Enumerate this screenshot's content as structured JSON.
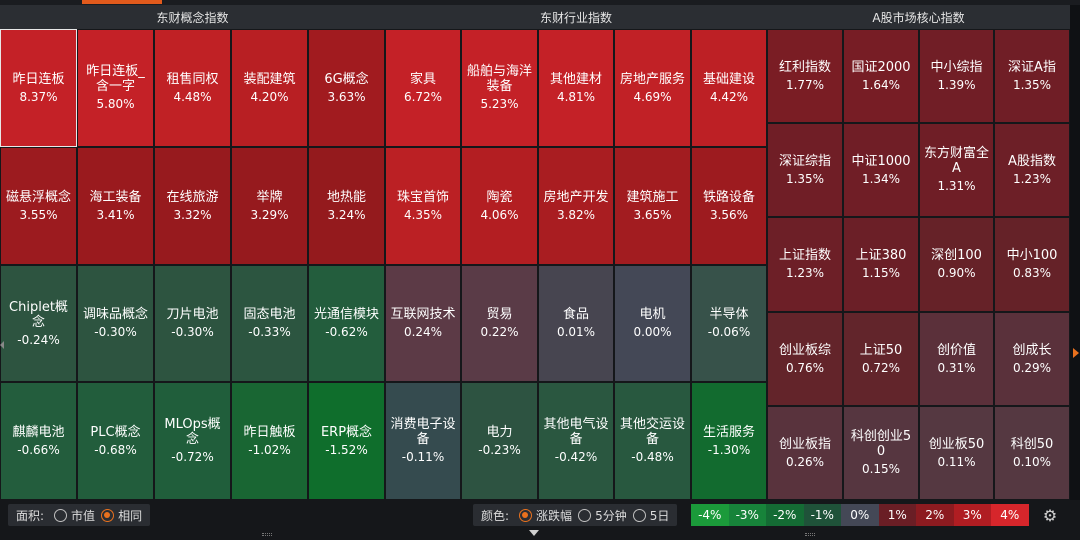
{
  "panels": [
    {
      "title": "东财概念指数",
      "rows": [
        [
          {
            "name": "昨日连板",
            "pct": "8.37%",
            "color": "#c42127",
            "selected": true
          },
          {
            "name": "昨日连板_含一字",
            "pct": "5.80%",
            "color": "#c42127"
          },
          {
            "name": "租售同权",
            "pct": "4.48%",
            "color": "#c02125"
          },
          {
            "name": "装配建筑",
            "pct": "4.20%",
            "color": "#b81f23"
          },
          {
            "name": "6G概念",
            "pct": "3.63%",
            "color": "#a11b1f"
          }
        ],
        [
          {
            "name": "磁悬浮概念",
            "pct": "3.55%",
            "color": "#9c1b1f"
          },
          {
            "name": "海工装备",
            "pct": "3.41%",
            "color": "#9a1a1e"
          },
          {
            "name": "在线旅游",
            "pct": "3.32%",
            "color": "#971a1e"
          },
          {
            "name": "举牌",
            "pct": "3.29%",
            "color": "#961a1e"
          },
          {
            "name": "地热能",
            "pct": "3.24%",
            "color": "#941a1d"
          }
        ],
        [
          {
            "name": "Chiplet概念",
            "pct": "-0.24%",
            "color": "#2d5440"
          },
          {
            "name": "调味品概念",
            "pct": "-0.30%",
            "color": "#2d5440"
          },
          {
            "name": "刀片电池",
            "pct": "-0.30%",
            "color": "#2d5440"
          },
          {
            "name": "固态电池",
            "pct": "-0.33%",
            "color": "#2c5540"
          },
          {
            "name": "光通信模块",
            "pct": "-0.62%",
            "color": "#235d3d"
          }
        ],
        [
          {
            "name": "麒麟电池",
            "pct": "-0.66%",
            "color": "#235d3d"
          },
          {
            "name": "PLC概念",
            "pct": "-0.68%",
            "color": "#225d3c"
          },
          {
            "name": "MLOps概念",
            "pct": "-0.72%",
            "color": "#205e3b"
          },
          {
            "name": "昨日触板",
            "pct": "-1.02%",
            "color": "#196633"
          },
          {
            "name": "ERP概念",
            "pct": "-1.52%",
            "color": "#0f6e2c"
          }
        ]
      ]
    },
    {
      "title": "东财行业指数",
      "rows": [
        [
          {
            "name": "家具",
            "pct": "6.72%",
            "color": "#c42127"
          },
          {
            "name": "船舶与海洋装备",
            "pct": "5.23%",
            "color": "#c42127"
          },
          {
            "name": "其他建材",
            "pct": "4.81%",
            "color": "#c42127"
          },
          {
            "name": "房地产服务",
            "pct": "4.69%",
            "color": "#c12126"
          },
          {
            "name": "基础建设",
            "pct": "4.42%",
            "color": "#bd2025"
          }
        ],
        [
          {
            "name": "珠宝首饰",
            "pct": "4.35%",
            "color": "#bb2024"
          },
          {
            "name": "陶瓷",
            "pct": "4.06%",
            "color": "#b31e22"
          },
          {
            "name": "房地产开发",
            "pct": "3.82%",
            "color": "#a91d21"
          },
          {
            "name": "建筑施工",
            "pct": "3.65%",
            "color": "#a21c20"
          },
          {
            "name": "铁路设备",
            "pct": "3.56%",
            "color": "#9d1b1f"
          }
        ],
        [
          {
            "name": "互联网技术",
            "pct": "0.24%",
            "color": "#5c3a46"
          },
          {
            "name": "贸易",
            "pct": "0.22%",
            "color": "#5a3b47"
          },
          {
            "name": "食品",
            "pct": "0.01%",
            "color": "#474550"
          },
          {
            "name": "电机",
            "pct": "0.00%",
            "color": "#444856"
          },
          {
            "name": "半导体",
            "pct": "-0.06%",
            "color": "#37524a"
          }
        ],
        [
          {
            "name": "消费电子设备",
            "pct": "-0.11%",
            "color": "#354b4f"
          },
          {
            "name": "电力",
            "pct": "-0.23%",
            "color": "#2d5341"
          },
          {
            "name": "其他电气设备",
            "pct": "-0.42%",
            "color": "#2a5740"
          },
          {
            "name": "其他交运设备",
            "pct": "-0.48%",
            "color": "#28583f"
          },
          {
            "name": "生活服务",
            "pct": "-1.30%",
            "color": "#126b2f"
          }
        ]
      ]
    },
    {
      "title": "A股市场核心指数",
      "rows": [
        [
          {
            "name": "红利指数",
            "pct": "1.77%",
            "color": "#7a1d24"
          },
          {
            "name": "国证2000",
            "pct": "1.64%",
            "color": "#771d25"
          },
          {
            "name": "中小综指",
            "pct": "1.39%",
            "color": "#711e26"
          },
          {
            "name": "深证A指",
            "pct": "1.35%",
            "color": "#701e26"
          }
        ],
        [
          {
            "name": "深证综指",
            "pct": "1.35%",
            "color": "#701e26"
          },
          {
            "name": "中证1000",
            "pct": "1.34%",
            "color": "#701e26"
          },
          {
            "name": "东方财富全A",
            "pct": "1.31%",
            "color": "#6f1e26"
          },
          {
            "name": "A股指数",
            "pct": "1.23%",
            "color": "#6d1f27"
          }
        ],
        [
          {
            "name": "上证指数",
            "pct": "1.23%",
            "color": "#6d1f27"
          },
          {
            "name": "上证380",
            "pct": "1.15%",
            "color": "#6b1f27"
          },
          {
            "name": "深创100",
            "pct": "0.90%",
            "color": "#662228"
          },
          {
            "name": "中小100",
            "pct": "0.83%",
            "color": "#652228"
          }
        ],
        [
          {
            "name": "创业板综",
            "pct": "0.76%",
            "color": "#63242a"
          },
          {
            "name": "上证50",
            "pct": "0.72%",
            "color": "#62252b"
          },
          {
            "name": "创价值",
            "pct": "0.31%",
            "color": "#5b303a"
          },
          {
            "name": "创成长",
            "pct": "0.29%",
            "color": "#5a313b"
          }
        ],
        [
          {
            "name": "创业板指",
            "pct": "0.26%",
            "color": "#59333d"
          },
          {
            "name": "科创创业50",
            "pct": "0.15%",
            "color": "#563640"
          },
          {
            "name": "创业板50",
            "pct": "0.11%",
            "color": "#553841"
          },
          {
            "name": "科创50",
            "pct": "0.10%",
            "color": "#553841"
          }
        ]
      ]
    }
  ],
  "footer": {
    "area": {
      "label": "面积:",
      "options": [
        "市值",
        "相同"
      ],
      "selected": 1
    },
    "color": {
      "label": "颜色:",
      "options": [
        "涨跌幅",
        "5分钟",
        "5日"
      ],
      "selected": 0
    },
    "legend": [
      {
        "label": "-4%",
        "color": "#1b9a3a"
      },
      {
        "label": "-3%",
        "color": "#17833a"
      },
      {
        "label": "-2%",
        "color": "#146b34"
      },
      {
        "label": "-1%",
        "color": "#1f5239"
      },
      {
        "label": "0%",
        "color": "#444856"
      },
      {
        "label": "1%",
        "color": "#6a1e25"
      },
      {
        "label": "2%",
        "color": "#8c1b20"
      },
      {
        "label": "3%",
        "color": "#b01d22"
      },
      {
        "label": "4%",
        "color": "#d6262b"
      }
    ],
    "settings_icon": "gear-icon"
  }
}
